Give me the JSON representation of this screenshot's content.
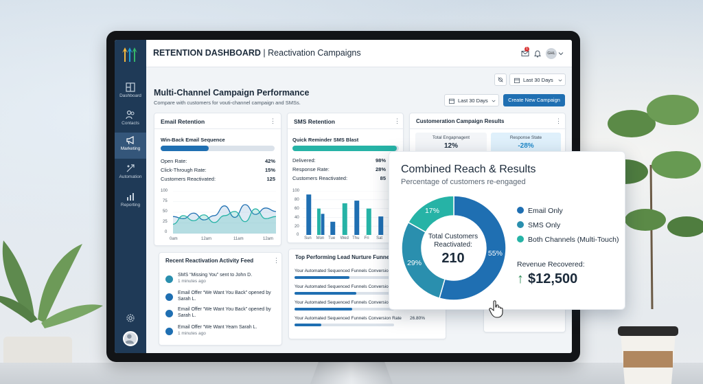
{
  "app": {
    "title_bold": "RETENTION DASHBOARD",
    "title_rest": " | Reactivation Campaigns",
    "user_initials": "GHL",
    "notification_count": "1"
  },
  "sidebar": {
    "items": [
      {
        "label": "Dashboard",
        "icon": "dashboard-icon"
      },
      {
        "label": "Contacts",
        "icon": "contacts-icon"
      },
      {
        "label": "Marketing",
        "icon": "megaphone-icon",
        "active": true
      },
      {
        "label": "Automation",
        "icon": "automation-icon"
      },
      {
        "label": "Reporting",
        "icon": "reporting-icon"
      }
    ]
  },
  "header": {
    "date_filter_top": "Last 30 Days",
    "date_filter": "Last 30 Days",
    "page_title": "Multi-Channel Campaign Performance",
    "page_subtitle": "Compare with customers for vouti-channel campaign and SMSs.",
    "create_button": "Create New Campaign"
  },
  "email_card": {
    "title": "Email Retention",
    "sequence_title": "Win-Back Email Sequence",
    "progress": 0.42,
    "rows": [
      {
        "label": "Open Rate:",
        "value": "42%"
      },
      {
        "label": "Click-Through Rate:",
        "value": "15%"
      },
      {
        "label": "Customers Reactivated:",
        "value": "125"
      }
    ],
    "y_ticks": [
      "100",
      "75",
      "50",
      "25",
      "0"
    ],
    "x_ticks": [
      "0am",
      "12am",
      "11am",
      "12am"
    ]
  },
  "sms_card": {
    "title": "SMS Retention",
    "sequence_title": "Quick Reminder SMS Blast",
    "progress": 0.98,
    "rows": [
      {
        "label": "Delivered:",
        "value": "98%"
      },
      {
        "label": "Response Rate:",
        "value": "28%"
      },
      {
        "label": "Customers Reactivated:",
        "value": "85"
      }
    ],
    "y_ticks": [
      "100",
      "80",
      "60",
      "40",
      "20",
      "0"
    ],
    "x_ticks": [
      "Sun",
      "Mon",
      "Tue",
      "Wed",
      "Thu",
      "Fri",
      "Sat",
      "Sun"
    ]
  },
  "results_card": {
    "title": "Customeration Campaign Results",
    "metric1_label": "Total Engapnagent",
    "metric1_value": "12%",
    "metric2_label": "Response State",
    "metric2_value": "-28%"
  },
  "feed_card": {
    "title": "Recent Reactivation Activity Feed",
    "items": [
      {
        "text": "SMS “Missing You” sent to John D.",
        "time": "1 minutes ago"
      },
      {
        "text": "Email Offer “We Want You Back” opened by Sarah L.",
        "time": ""
      },
      {
        "text": "Email Offer “We Want You Back” opened by Sarah L.",
        "time": ""
      },
      {
        "text": "Email Offer “We Want Yeam Sarah L.",
        "time": "1 minutes ago"
      }
    ]
  },
  "funnel_card": {
    "title": "Top Performing Lead Nurture Funnels",
    "items": [
      {
        "label": "Your Automated Sequenced Funnels Conversion Rate",
        "value": "",
        "progress": 0.55
      },
      {
        "label": "Your Automated Sequenced Funnels Conversion Rate",
        "value": "",
        "progress": 0.62
      },
      {
        "label": "Your Automated Sequenced Funnels Conversion Rate",
        "value": "",
        "progress": 0.58
      },
      {
        "label": "Your Automated Sequenced Funnels Conversion Rate",
        "value": "26.80%",
        "progress": 0.27
      }
    ]
  },
  "popup": {
    "title": "Combined Reach & Results",
    "subtitle": "Percentage of customers re-engaged",
    "center_label": "Total Customers Reactivated:",
    "center_value": "210",
    "legend": [
      {
        "label": "Email Only",
        "color": "#1f6fb2"
      },
      {
        "label": "SMS Only",
        "color": "#2a8fae"
      },
      {
        "label": "Both Channels (Multi-Touch)",
        "color": "#26b3a6"
      }
    ],
    "revenue_label": "Revenue Recovered:",
    "revenue_value": "$12,500",
    "revenue_arrow": "↑"
  },
  "chart_data": [
    {
      "type": "pie",
      "title": "Combined Reach & Results",
      "categories": [
        "Email Only",
        "SMS Only",
        "Both Channels (Multi-Touch)"
      ],
      "values": [
        55,
        29,
        17
      ],
      "labels": [
        "55%",
        "29%",
        "17%"
      ],
      "colors": [
        "#1f6fb2",
        "#2a8fae",
        "#26b3a6"
      ]
    },
    {
      "type": "bar",
      "title": "SMS Retention",
      "categories": [
        "Sun",
        "Mon",
        "Tue",
        "Wed",
        "Thu",
        "Fri",
        "Sat",
        "Sun"
      ],
      "series": [
        {
          "values": [
            92,
            48,
            30,
            72,
            78,
            60,
            42,
            85
          ],
          "color": "#1f6fb2"
        },
        {
          "values": [
            0,
            60,
            0,
            0,
            0,
            0,
            0,
            0
          ],
          "color": "#26b3a6"
        }
      ],
      "ylim": [
        0,
        100
      ]
    },
    {
      "type": "area",
      "title": "Email Retention",
      "x": [
        0,
        1,
        2,
        3,
        4,
        5,
        6,
        7,
        8,
        9,
        10
      ],
      "series": [
        {
          "values": [
            40,
            35,
            48,
            32,
            42,
            65,
            38,
            68,
            45,
            60,
            52
          ],
          "color": "#1f6fb2"
        },
        {
          "values": [
            22,
            42,
            30,
            44,
            26,
            42,
            52,
            28,
            58,
            35,
            40
          ],
          "color": "#26b3a6"
        }
      ],
      "ylim": [
        0,
        100
      ]
    }
  ]
}
